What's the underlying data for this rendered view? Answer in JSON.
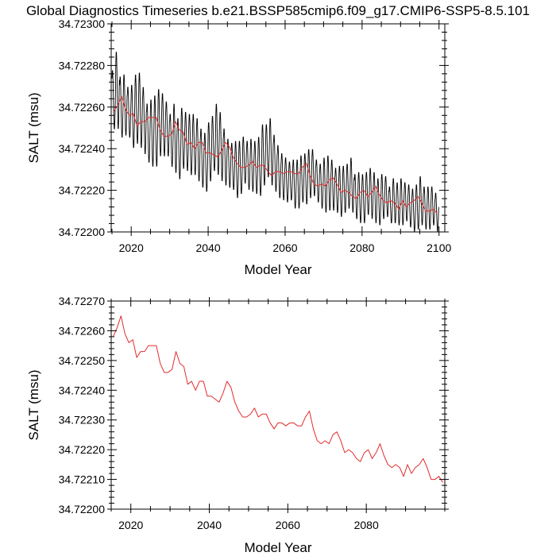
{
  "chart_data": [
    {
      "type": "line",
      "title": "Global Diagnostics Timeseries b.e21.BSSP585cmip6.f09_g17.CMIP6-SSP5-8.5.101",
      "xlabel": "Model Year",
      "ylabel": "SALT (msu)",
      "xlim": [
        2014.8,
        2101.5
      ],
      "ylim": [
        34.722,
        34.723
      ],
      "xticks": [
        "2020",
        "2040",
        "2060",
        "2080",
        "2100"
      ],
      "xtick_values": [
        2020,
        2040,
        2060,
        2080,
        2100
      ],
      "yticks": [
        "34.72200",
        "34.72220",
        "34.72240",
        "34.72260",
        "34.72280",
        "34.72300"
      ],
      "ytick_values": [
        34.722,
        34.7222,
        34.7224,
        34.7226,
        34.7228,
        34.723
      ],
      "grid": false,
      "series": [
        {
          "color": "#000000",
          "description": "monthly values with strong seasonal cycle",
          "annual_max": [
            34.72278,
            34.72287,
            34.72275,
            34.72276,
            34.7227,
            34.72271,
            34.72276,
            34.72277,
            34.7227,
            34.72262,
            34.72264,
            34.72266,
            34.72269,
            34.72267,
            34.72263,
            34.72257,
            34.72262,
            34.72255,
            34.7226,
            34.72258,
            34.72257,
            34.72257,
            34.72255,
            34.7225,
            34.72248,
            34.72253,
            34.72256,
            34.72262,
            34.72258,
            34.7225,
            34.72245,
            34.72243,
            34.72244,
            34.72244,
            34.72246,
            34.72244,
            34.72245,
            34.72244,
            34.72246,
            34.72252,
            34.72252,
            34.72255,
            34.72247,
            34.72242,
            34.72238,
            34.72236,
            34.72234,
            34.72235,
            34.72235,
            34.72237,
            34.72238,
            34.7224,
            34.7224,
            34.72235,
            34.72233,
            34.72236,
            34.72237,
            34.72235,
            34.72231,
            34.72232,
            34.72232,
            34.72233,
            34.72236,
            34.72228,
            34.72229,
            34.72228,
            34.72229,
            34.72231,
            34.72229,
            34.72226,
            34.72228,
            34.72227,
            34.72222,
            34.72226,
            34.72224,
            34.72226,
            34.72224,
            34.72223,
            34.72221,
            34.72223,
            34.72227,
            34.72222,
            34.72222,
            34.72222,
            34.72219
          ],
          "annual_min": [
            34.72249,
            34.72249,
            34.72245,
            34.72246,
            34.72245,
            34.7224,
            34.72242,
            34.7224,
            34.72237,
            34.72233,
            34.72231,
            34.72231,
            34.72236,
            34.72236,
            34.72236,
            34.72231,
            34.72228,
            34.72225,
            34.7223,
            34.72229,
            34.72227,
            34.72227,
            34.72224,
            34.72221,
            34.72219,
            34.72224,
            34.72229,
            34.72227,
            34.72224,
            34.72222,
            34.72221,
            34.7222,
            34.72216,
            34.72218,
            34.72223,
            34.7222,
            34.72219,
            34.72218,
            34.72217,
            34.72222,
            34.72226,
            34.72222,
            34.72219,
            34.72216,
            34.72215,
            34.72214,
            34.72215,
            34.72211,
            34.72211,
            34.72214,
            34.72213,
            34.72216,
            34.72217,
            34.72214,
            34.72211,
            34.72209,
            34.7221,
            34.7221,
            34.72209,
            34.72207,
            34.72209,
            34.72211,
            34.72209,
            34.72206,
            34.72204,
            34.72204,
            34.72208,
            34.72206,
            34.72204,
            34.72203,
            34.72206,
            34.72207,
            34.72204,
            34.72204,
            34.72203,
            34.72203,
            34.72205,
            34.72202,
            34.722,
            34.72201,
            34.72203,
            34.72201,
            34.72201,
            34.72203,
            34.722
          ],
          "x_start": 2015,
          "cycle": "monthly"
        },
        {
          "color": "#e32b2b",
          "description": "annual mean",
          "x": [
            2015,
            2016,
            2017,
            2018,
            2019,
            2020,
            2021,
            2022,
            2023,
            2024,
            2025,
            2026,
            2027,
            2028,
            2029,
            2030,
            2031,
            2032,
            2033,
            2034,
            2035,
            2036,
            2037,
            2038,
            2039,
            2040,
            2041,
            2042,
            2043,
            2044,
            2045,
            2046,
            2047,
            2048,
            2049,
            2050,
            2051,
            2052,
            2053,
            2054,
            2055,
            2056,
            2057,
            2058,
            2059,
            2060,
            2061,
            2062,
            2063,
            2064,
            2065,
            2066,
            2067,
            2068,
            2069,
            2070,
            2071,
            2072,
            2073,
            2074,
            2075,
            2076,
            2077,
            2078,
            2079,
            2080,
            2081,
            2082,
            2083,
            2084,
            2085,
            2086,
            2087,
            2088,
            2089,
            2090,
            2091,
            2092,
            2093,
            2094,
            2095,
            2096,
            2097,
            2098,
            2099
          ],
          "y": [
            34.72258,
            34.72261,
            34.72265,
            34.72259,
            34.72256,
            34.72257,
            34.72251,
            34.72253,
            34.72253,
            34.72255,
            34.72255,
            34.72255,
            34.72249,
            34.72246,
            34.72246,
            34.72247,
            34.72253,
            34.72249,
            34.72248,
            34.72242,
            34.72243,
            34.7224,
            34.72243,
            34.72243,
            34.72238,
            34.72238,
            34.72237,
            34.72236,
            34.72239,
            34.72243,
            34.72241,
            34.72236,
            34.72233,
            34.72231,
            34.72231,
            34.72232,
            34.72234,
            34.72231,
            34.72232,
            34.72232,
            34.72229,
            34.72227,
            34.72229,
            34.72229,
            34.72228,
            34.72229,
            34.72229,
            34.72228,
            34.72228,
            34.72231,
            34.72233,
            34.72227,
            34.72223,
            34.72222,
            34.72223,
            34.72222,
            34.72225,
            34.72226,
            34.72223,
            34.72219,
            34.7222,
            34.72219,
            34.72217,
            34.72216,
            34.72219,
            34.7222,
            34.72217,
            34.72219,
            34.72222,
            34.72218,
            34.72215,
            34.72214,
            34.72215,
            34.72214,
            34.72211,
            34.72215,
            34.72212,
            34.72214,
            34.72215,
            34.72217,
            34.72214,
            34.7221,
            34.7221,
            34.72211,
            34.72209
          ]
        }
      ]
    },
    {
      "type": "line",
      "title": "",
      "xlabel": "Model Year",
      "ylabel": "SALT (msu)",
      "xlim": [
        2015,
        2100
      ],
      "ylim": [
        34.722,
        34.7227
      ],
      "xticks": [
        "2020",
        "2040",
        "2060",
        "2080"
      ],
      "xtick_values": [
        2020,
        2040,
        2060,
        2080
      ],
      "yticks": [
        "34.72200",
        "34.72210",
        "34.72220",
        "34.72230",
        "34.72240",
        "34.72250",
        "34.72260",
        "34.72270"
      ],
      "ytick_values": [
        34.722,
        34.7221,
        34.7222,
        34.7223,
        34.7224,
        34.7225,
        34.7226,
        34.7227
      ],
      "grid": false,
      "series": [
        {
          "color": "#e32b2b",
          "description": "annual mean",
          "x": [
            2015,
            2016,
            2017,
            2018,
            2019,
            2020,
            2021,
            2022,
            2023,
            2024,
            2025,
            2026,
            2027,
            2028,
            2029,
            2030,
            2031,
            2032,
            2033,
            2034,
            2035,
            2036,
            2037,
            2038,
            2039,
            2040,
            2041,
            2042,
            2043,
            2044,
            2045,
            2046,
            2047,
            2048,
            2049,
            2050,
            2051,
            2052,
            2053,
            2054,
            2055,
            2056,
            2057,
            2058,
            2059,
            2060,
            2061,
            2062,
            2063,
            2064,
            2065,
            2066,
            2067,
            2068,
            2069,
            2070,
            2071,
            2072,
            2073,
            2074,
            2075,
            2076,
            2077,
            2078,
            2079,
            2080,
            2081,
            2082,
            2083,
            2084,
            2085,
            2086,
            2087,
            2088,
            2089,
            2090,
            2091,
            2092,
            2093,
            2094,
            2095,
            2096,
            2097,
            2098,
            2099
          ],
          "y": [
            34.72258,
            34.72261,
            34.72265,
            34.72259,
            34.72256,
            34.72257,
            34.72251,
            34.72253,
            34.72253,
            34.72255,
            34.72255,
            34.72255,
            34.72249,
            34.72246,
            34.72246,
            34.72247,
            34.72253,
            34.72249,
            34.72248,
            34.72242,
            34.72243,
            34.7224,
            34.72243,
            34.72243,
            34.72238,
            34.72238,
            34.72237,
            34.72236,
            34.72239,
            34.72243,
            34.72241,
            34.72236,
            34.72233,
            34.72231,
            34.72231,
            34.72232,
            34.72234,
            34.72231,
            34.72232,
            34.72232,
            34.72229,
            34.72227,
            34.72229,
            34.72229,
            34.72228,
            34.72229,
            34.72229,
            34.72228,
            34.72228,
            34.72231,
            34.72233,
            34.72227,
            34.72223,
            34.72222,
            34.72223,
            34.72222,
            34.72225,
            34.72226,
            34.72223,
            34.72219,
            34.7222,
            34.72219,
            34.72217,
            34.72216,
            34.72219,
            34.7222,
            34.72217,
            34.72219,
            34.72222,
            34.72218,
            34.72215,
            34.72214,
            34.72215,
            34.72214,
            34.72211,
            34.72215,
            34.72212,
            34.72214,
            34.72215,
            34.72217,
            34.72214,
            34.7221,
            34.7221,
            34.72211,
            34.72209
          ]
        }
      ]
    }
  ]
}
